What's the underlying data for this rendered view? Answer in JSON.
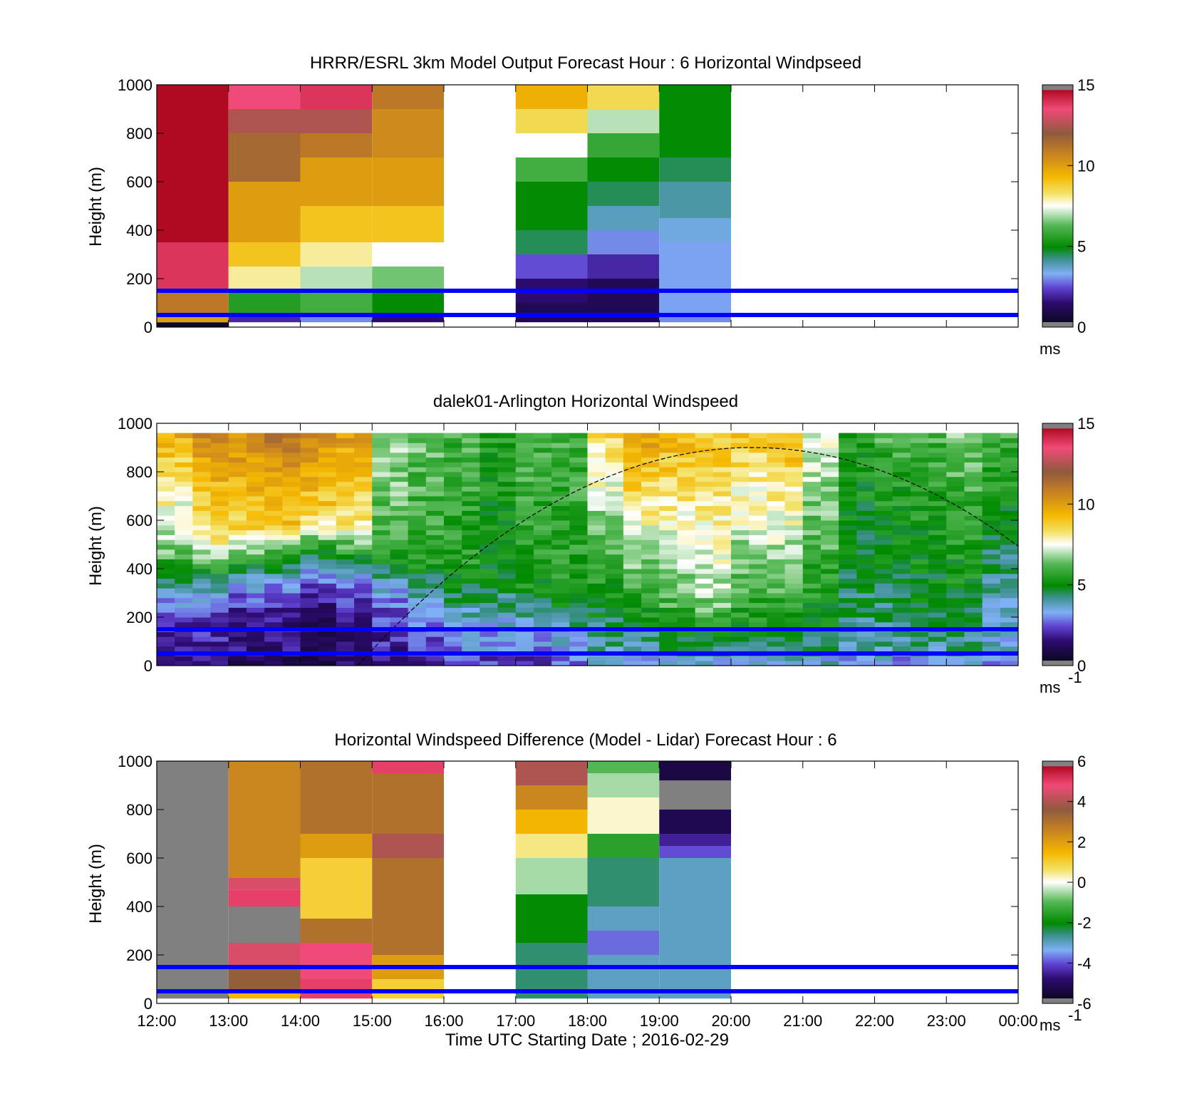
{
  "chart_data": [
    {
      "type": "heatmap",
      "title": "HRRR/ESRL 3km Model Output   Forecast Hour : 6 Horizontal Windpseed",
      "ylabel": "Height (m)",
      "ylim": [
        0,
        1000
      ],
      "yticks": [
        "0",
        "200",
        "400",
        "600",
        "800",
        "1000"
      ],
      "xlim": [
        12,
        24
      ],
      "colorbar": {
        "min": 0,
        "max": 15,
        "ticks": [
          "0",
          "5",
          "10",
          "15"
        ],
        "unit": "ms",
        "unit_sup": "",
        "scale": "wind"
      },
      "reference_lines": [
        50,
        150
      ],
      "columns": [
        {
          "t0": 12,
          "t1": 13,
          "bands": [
            [
              0,
              20,
              0
            ],
            [
              20,
              50,
              10
            ],
            [
              50,
              150,
              11
            ],
            [
              150,
              350,
              14
            ],
            [
              350,
              1000,
              16
            ]
          ]
        },
        {
          "t0": 13,
          "t1": 14,
          "bands": [
            [
              20,
              50,
              2
            ],
            [
              50,
              150,
              5.5
            ],
            [
              150,
              250,
              8
            ],
            [
              250,
              350,
              9
            ],
            [
              350,
              600,
              10
            ],
            [
              600,
              800,
              11.5
            ],
            [
              800,
              900,
              12.5
            ],
            [
              900,
              1000,
              13.5
            ]
          ]
        },
        {
          "t0": 14,
          "t1": 15,
          "bands": [
            [
              20,
              50,
              3
            ],
            [
              50,
              150,
              6
            ],
            [
              150,
              250,
              7
            ],
            [
              250,
              350,
              8
            ],
            [
              350,
              500,
              9
            ],
            [
              500,
              700,
              10
            ],
            [
              700,
              800,
              11
            ],
            [
              800,
              900,
              12.5
            ],
            [
              900,
              1000,
              14
            ]
          ]
        },
        {
          "t0": 15,
          "t1": 16,
          "bands": [
            [
              20,
              50,
              1.5
            ],
            [
              50,
              150,
              5
            ],
            [
              150,
              250,
              6.5
            ],
            [
              250,
              350,
              7.5
            ],
            [
              350,
              500,
              9
            ],
            [
              500,
              700,
              10
            ],
            [
              700,
              900,
              10.5
            ],
            [
              900,
              1000,
              11
            ]
          ]
        },
        {
          "t0": 17,
          "t1": 18,
          "bands": [
            [
              20,
              100,
              1
            ],
            [
              100,
              200,
              1.5
            ],
            [
              200,
              300,
              2.5
            ],
            [
              300,
              400,
              4.5
            ],
            [
              400,
              600,
              5
            ],
            [
              600,
              700,
              6
            ],
            [
              700,
              800,
              7.5
            ],
            [
              800,
              900,
              8.5
            ],
            [
              900,
              1000,
              9.5
            ]
          ]
        },
        {
          "t0": 18,
          "t1": 19,
          "bands": [
            [
              20,
              200,
              1
            ],
            [
              200,
              300,
              2
            ],
            [
              300,
              400,
              3
            ],
            [
              400,
              500,
              3.8
            ],
            [
              500,
              600,
              4.5
            ],
            [
              600,
              700,
              5
            ],
            [
              700,
              800,
              5.8
            ],
            [
              800,
              900,
              7
            ],
            [
              900,
              1000,
              8.5
            ]
          ]
        },
        {
          "t0": 19,
          "t1": 20,
          "bands": [
            [
              20,
              50,
              3
            ],
            [
              50,
              350,
              3.2
            ],
            [
              350,
              450,
              3.5
            ],
            [
              450,
              600,
              4
            ],
            [
              600,
              700,
              4.5
            ],
            [
              700,
              900,
              5
            ],
            [
              900,
              1000,
              5
            ]
          ]
        }
      ]
    },
    {
      "type": "heatmap",
      "title": "dalek01-Arlington  Horizontal Windspeed",
      "ylabel": "Height (m)",
      "ylim": [
        0,
        1000
      ],
      "yticks": [
        "0",
        "200",
        "400",
        "600",
        "800",
        "1000"
      ],
      "xlim": [
        12,
        24
      ],
      "colorbar": {
        "min": 0,
        "max": 15,
        "ticks": [
          "0",
          "5",
          "10",
          "15"
        ],
        "unit": "ms",
        "unit_sup": "-1",
        "scale": "wind"
      },
      "reference_lines": [
        50,
        150
      ],
      "sun_curve": {
        "x_start": 14.8,
        "x_peak": 20.3,
        "peak": 900,
        "x_end": 24,
        "y_end": 430
      },
      "lidar_profiles": [
        {
          "t": 12.0,
          "top": 9.5,
          "mid": 6.5,
          "low": 2,
          "bl": 320
        },
        {
          "t": 12.5,
          "top": 10.5,
          "mid": 8,
          "low": 2,
          "bl": 360
        },
        {
          "t": 13.0,
          "top": 10.5,
          "mid": 8.5,
          "low": 1.5,
          "bl": 400
        },
        {
          "t": 13.5,
          "top": 11,
          "mid": 9,
          "low": 1.5,
          "bl": 420
        },
        {
          "t": 14.0,
          "top": 10.5,
          "mid": 8.5,
          "low": 1,
          "bl": 440
        },
        {
          "t": 14.5,
          "top": 10,
          "mid": 8,
          "low": 1.5,
          "bl": 420
        },
        {
          "t": 15.0,
          "top": 7,
          "mid": 6,
          "low": 2,
          "bl": 340
        },
        {
          "t": 15.5,
          "top": 6.5,
          "mid": 5.5,
          "low": 2.5,
          "bl": 280
        },
        {
          "t": 16.0,
          "top": 6,
          "mid": 5.5,
          "low": 3,
          "bl": 240
        },
        {
          "t": 16.5,
          "top": 5.5,
          "mid": 5,
          "low": 3,
          "bl": 220
        },
        {
          "t": 17.0,
          "top": 6,
          "mid": 5.5,
          "low": 3,
          "bl": 210
        },
        {
          "t": 17.5,
          "top": 6,
          "mid": 5.5,
          "low": 3.5,
          "bl": 200
        },
        {
          "t": 18.0,
          "top": 8.5,
          "mid": 5.5,
          "low": 4,
          "bl": 190
        },
        {
          "t": 18.5,
          "top": 10,
          "mid": 6,
          "low": 4,
          "bl": 180
        },
        {
          "t": 19.0,
          "top": 9.5,
          "mid": 6.5,
          "low": 4.5,
          "bl": 170
        },
        {
          "t": 19.5,
          "top": 9,
          "mid": 7,
          "low": 4.5,
          "bl": 160
        },
        {
          "t": 20.0,
          "top": 9,
          "mid": 6,
          "low": 4.5,
          "bl": 160
        },
        {
          "t": 20.5,
          "top": 9.5,
          "mid": 6,
          "low": 4.5,
          "bl": 150
        },
        {
          "t": 21.0,
          "top": 7.5,
          "mid": 5.5,
          "low": 4.5,
          "bl": 150
        },
        {
          "t": 21.5,
          "top": 5.5,
          "mid": 4.5,
          "low": 4,
          "bl": 150
        },
        {
          "t": 22.0,
          "top": 6,
          "mid": 4.5,
          "low": 4,
          "bl": 140
        },
        {
          "t": 22.5,
          "top": 6,
          "mid": 4.8,
          "low": 4,
          "bl": 140
        },
        {
          "t": 23.0,
          "top": 6.5,
          "mid": 5,
          "low": 4,
          "bl": 140
        },
        {
          "t": 23.5,
          "top": 6,
          "mid": 4,
          "low": 3.5,
          "bl": 140
        }
      ],
      "lidar_top_limit": 950
    },
    {
      "type": "heatmap",
      "title": "Horizontal Windspeed Difference (Model - Lidar) Forecast Hour : 6",
      "ylabel": "Height (m)",
      "xlabel": "Time UTC  Starting Date ; 2016-02-29",
      "ylim": [
        0,
        1000
      ],
      "yticks": [
        "0",
        "200",
        "400",
        "600",
        "800",
        "1000"
      ],
      "xlim": [
        12,
        24
      ],
      "xticks": [
        "12:00",
        "13:00",
        "14:00",
        "15:00",
        "16:00",
        "17:00",
        "18:00",
        "19:00",
        "20:00",
        "21:00",
        "22:00",
        "23:00",
        "00:00"
      ],
      "colorbar": {
        "min": -6,
        "max": 6,
        "ticks": [
          "-6",
          "-4",
          "-2",
          "0",
          "2",
          "4",
          "6"
        ],
        "unit": "ms",
        "unit_sup": "-1",
        "scale": "diff"
      },
      "reference_lines": [
        50,
        150
      ],
      "columns": [
        {
          "t0": 12,
          "t1": 13,
          "bands": [
            [
              20,
              1000,
              99
            ]
          ]
        },
        {
          "t0": 13,
          "t1": 14,
          "bands": [
            [
              20,
              50,
              1.5
            ],
            [
              50,
              150,
              3.5
            ],
            [
              150,
              250,
              4.5
            ],
            [
              250,
              400,
              99
            ],
            [
              400,
              470,
              5
            ],
            [
              470,
              520,
              4.5
            ],
            [
              520,
              1000,
              2.5
            ]
          ]
        },
        {
          "t0": 14,
          "t1": 15,
          "bands": [
            [
              20,
              100,
              5
            ],
            [
              100,
              250,
              4.8
            ],
            [
              250,
              350,
              3
            ],
            [
              350,
              600,
              1
            ],
            [
              600,
              700,
              2
            ],
            [
              700,
              1000,
              3
            ]
          ]
        },
        {
          "t0": 15,
          "t1": 16,
          "bands": [
            [
              20,
              100,
              1
            ],
            [
              100,
              200,
              2
            ],
            [
              200,
              600,
              3
            ],
            [
              600,
              700,
              4
            ],
            [
              700,
              950,
              3
            ],
            [
              950,
              1000,
              5
            ]
          ]
        },
        {
          "t0": 17,
          "t1": 18,
          "bands": [
            [
              20,
              250,
              -2.5
            ],
            [
              250,
              450,
              -2
            ],
            [
              450,
              600,
              -0.5
            ],
            [
              600,
              700,
              0.5
            ],
            [
              700,
              800,
              1.5
            ],
            [
              800,
              900,
              2.5
            ],
            [
              900,
              1000,
              4
            ]
          ]
        },
        {
          "t0": 18,
          "t1": 19,
          "bands": [
            [
              20,
              200,
              -3
            ],
            [
              200,
              300,
              -3.8
            ],
            [
              300,
              400,
              -3
            ],
            [
              400,
              600,
              -2.5
            ],
            [
              600,
              700,
              -1.5
            ],
            [
              700,
              850,
              0.2
            ],
            [
              850,
              950,
              -0.5
            ],
            [
              950,
              1000,
              -1
            ]
          ]
        },
        {
          "t0": 19,
          "t1": 20,
          "bands": [
            [
              20,
              600,
              -3
            ],
            [
              600,
              650,
              -4
            ],
            [
              650,
              700,
              -4.5
            ],
            [
              700,
              800,
              -5.3
            ],
            [
              800,
              920,
              99
            ],
            [
              920,
              1000,
              -5.5
            ]
          ]
        }
      ]
    }
  ]
}
